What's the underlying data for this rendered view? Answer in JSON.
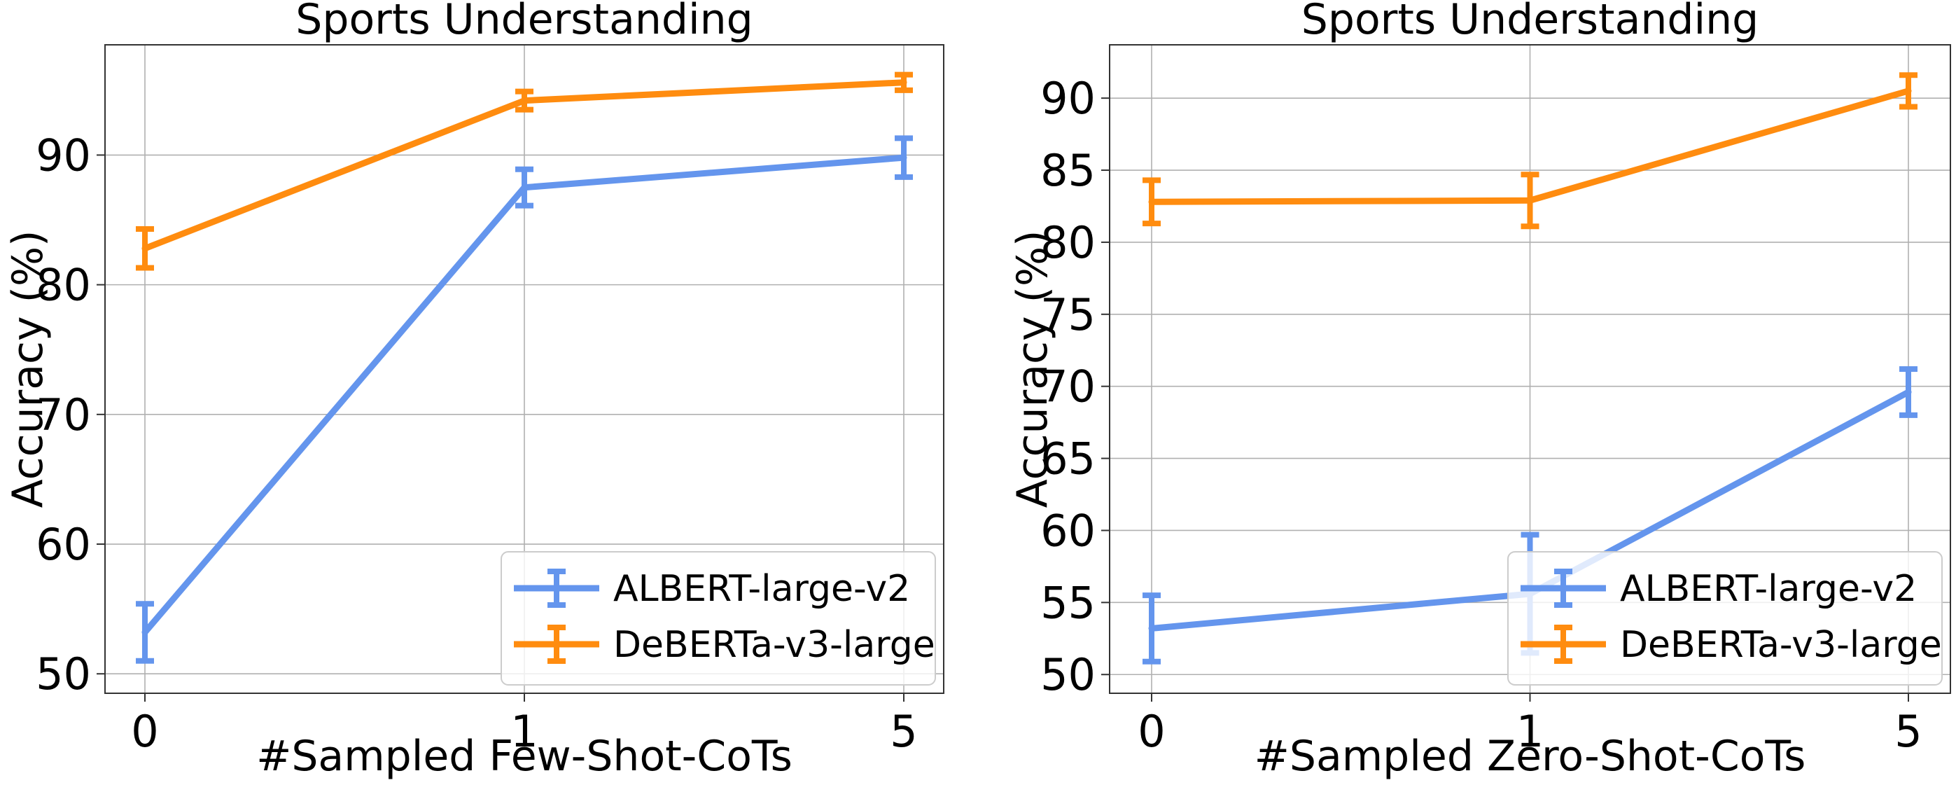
{
  "colors": {
    "ALBERT": "#6495ED",
    "DeBERTa": "#FF8C0F",
    "grid": "#b0b0b0",
    "axis": "#333333"
  },
  "chart_data": [
    {
      "type": "line",
      "title": "Sports Understanding",
      "xlabel": "#Sampled Few-Shot-CoTs",
      "ylabel": "Accuracy (%)",
      "categories": [
        "0",
        "1",
        "5"
      ],
      "ylim": [
        48.5,
        98.5
      ],
      "yticks": [
        50,
        60,
        70,
        80,
        90
      ],
      "grid": true,
      "legend_position": "lower-right",
      "series": [
        {
          "name": "ALBERT-large-v2",
          "color_key": "ALBERT",
          "values": [
            53.2,
            87.5,
            89.8
          ],
          "errors": [
            2.2,
            1.4,
            1.5
          ]
        },
        {
          "name": "DeBERTa-v3-large",
          "color_key": "DeBERTa",
          "values": [
            82.8,
            94.2,
            95.6
          ],
          "errors": [
            1.5,
            0.7,
            0.6
          ]
        }
      ]
    },
    {
      "type": "line",
      "title": "Sports Understanding",
      "xlabel": "#Sampled Zero-Shot-CoTs",
      "ylabel": "Accuracy (%)",
      "categories": [
        "0",
        "1",
        "5"
      ],
      "ylim": [
        48.7,
        93.7
      ],
      "yticks": [
        50,
        55,
        60,
        65,
        70,
        75,
        80,
        85,
        90
      ],
      "grid": true,
      "legend_position": "lower-right",
      "series": [
        {
          "name": "ALBERT-large-v2",
          "color_key": "ALBERT",
          "values": [
            53.2,
            55.6,
            69.6
          ],
          "errors": [
            2.3,
            4.1,
            1.6
          ]
        },
        {
          "name": "DeBERTa-v3-large",
          "color_key": "DeBERTa",
          "values": [
            82.8,
            82.9,
            90.5
          ],
          "errors": [
            1.5,
            1.8,
            1.1
          ]
        }
      ]
    }
  ]
}
